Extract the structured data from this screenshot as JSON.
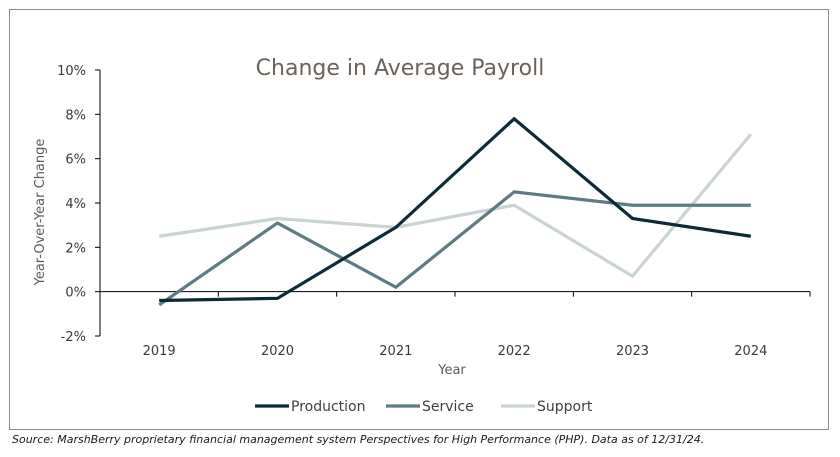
{
  "chart_data": {
    "type": "line",
    "title": "Change in Average Payroll",
    "xlabel": "Year",
    "ylabel": "Year-Over-Year Change",
    "categories": [
      "2019",
      "2020",
      "2021",
      "2022",
      "2023",
      "2024"
    ],
    "ylim": [
      -2,
      10
    ],
    "yticks": [
      "10%",
      "8%",
      "6%",
      "4%",
      "2%",
      "0%",
      "-2%"
    ],
    "ytick_values": [
      10,
      8,
      6,
      4,
      2,
      0,
      -2
    ],
    "grid": false,
    "legend_position": "bottom",
    "series": [
      {
        "name": "Production",
        "color": "#0d2b36",
        "values": [
          -0.4,
          -0.3,
          2.9,
          7.8,
          3.3,
          2.5
        ]
      },
      {
        "name": "Service",
        "color": "#5e7a82",
        "values": [
          -0.6,
          3.1,
          0.2,
          4.5,
          3.9,
          3.9
        ]
      },
      {
        "name": "Support",
        "color": "#c9d3d2",
        "values": [
          2.5,
          3.3,
          2.9,
          3.9,
          0.7,
          7.1
        ]
      }
    ]
  },
  "source_note": "Source: MarshBerry proprietary financial management system Perspectives for High Performance (PHP). Data as of 12/31/24."
}
